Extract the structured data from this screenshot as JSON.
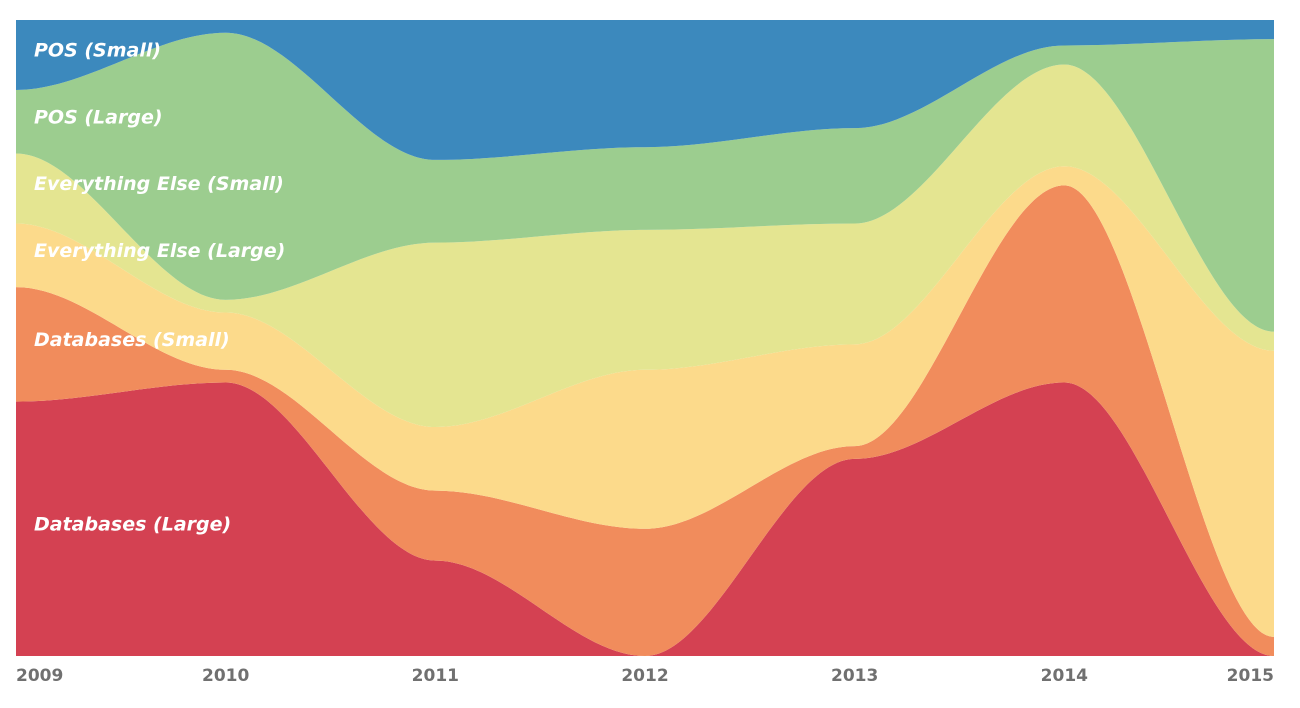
{
  "chart_data": {
    "type": "stacked-area",
    "categories": [
      "2009",
      "2010",
      "2011",
      "2012",
      "2013",
      "2014",
      "2015"
    ],
    "ylim": [
      0,
      100
    ],
    "series": [
      {
        "name": "Databases (Large)",
        "color": "#d44152",
        "values": [
          40,
          43,
          15,
          0,
          31,
          43,
          0
        ]
      },
      {
        "name": "Databases (Small)",
        "color": "#f18c5c",
        "values": [
          18,
          2,
          11,
          20,
          2,
          31,
          3
        ]
      },
      {
        "name": "Everything Else (Large)",
        "color": "#fcda8b",
        "values": [
          10,
          9,
          10,
          25,
          16,
          3,
          45
        ]
      },
      {
        "name": "Everything Else (Small)",
        "color": "#e4e591",
        "values": [
          11,
          2,
          29,
          22,
          19,
          16,
          3
        ]
      },
      {
        "name": "POS (Large)",
        "color": "#9ccd8f",
        "values": [
          10,
          42,
          13,
          13,
          15,
          3,
          46
        ]
      },
      {
        "name": "POS (Small)",
        "color": "#3c89bd",
        "values": [
          11,
          2,
          22,
          20,
          17,
          4,
          3
        ]
      }
    ]
  }
}
